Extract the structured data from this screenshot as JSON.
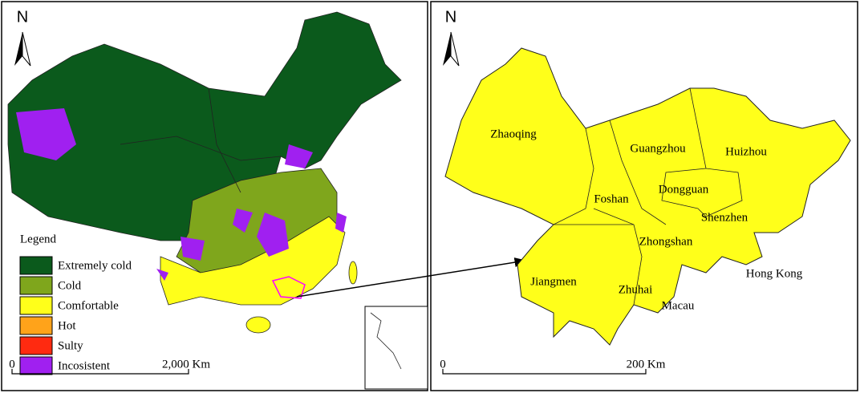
{
  "left_map": {
    "north": "N",
    "legend": {
      "title": "Legend",
      "items": [
        {
          "label": "Extremely cold",
          "color": "#0b5a1c"
        },
        {
          "label": "Cold",
          "color": "#7fa61c"
        },
        {
          "label": "Comfortable",
          "color": "#ffff1a"
        },
        {
          "label": "Hot",
          "color": "#ffa31a"
        },
        {
          "label": "Sulty",
          "color": "#ff2a10"
        },
        {
          "label": "Incosistent",
          "color": "#a020f0"
        }
      ]
    },
    "scale_bar": {
      "labels": [
        "0",
        "2,000 Km"
      ]
    }
  },
  "right_map": {
    "north": "N",
    "cities": [
      "Zhaoqing",
      "Guangzhou",
      "Huizhou",
      "Foshan",
      "Dongguan",
      "Shenzhen",
      "Zhongshan",
      "Hong Kong",
      "Jiangmen",
      "Zhuhai",
      "Macau"
    ],
    "scale_bar": {
      "labels": [
        "0",
        "200 Km"
      ]
    }
  }
}
